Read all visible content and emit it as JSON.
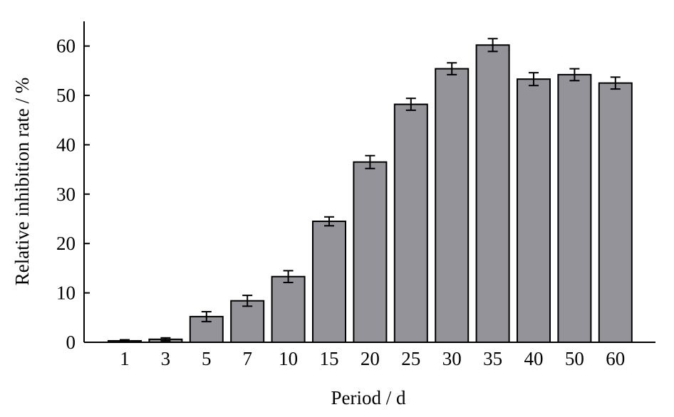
{
  "chart_data": {
    "type": "bar",
    "title": "",
    "xlabel": "Period / d",
    "ylabel": "Relative inhibition rate / %",
    "categories": [
      "1",
      "3",
      "5",
      "7",
      "10",
      "15",
      "20",
      "25",
      "30",
      "35",
      "40",
      "50",
      "60"
    ],
    "values": [
      0.3,
      0.6,
      5.2,
      8.4,
      13.3,
      24.5,
      36.5,
      48.2,
      55.4,
      60.2,
      53.3,
      54.2,
      52.5
    ],
    "errors": [
      0.2,
      0.3,
      1.0,
      1.1,
      1.2,
      0.9,
      1.3,
      1.2,
      1.2,
      1.3,
      1.3,
      1.2,
      1.2
    ],
    "ylim": [
      0,
      65
    ],
    "yticks": [
      0,
      10,
      20,
      30,
      40,
      50,
      60
    ],
    "grid": false,
    "colors": {
      "bar_fill": "#939399",
      "bar_stroke": "#000000",
      "axis": "#000000"
    }
  }
}
